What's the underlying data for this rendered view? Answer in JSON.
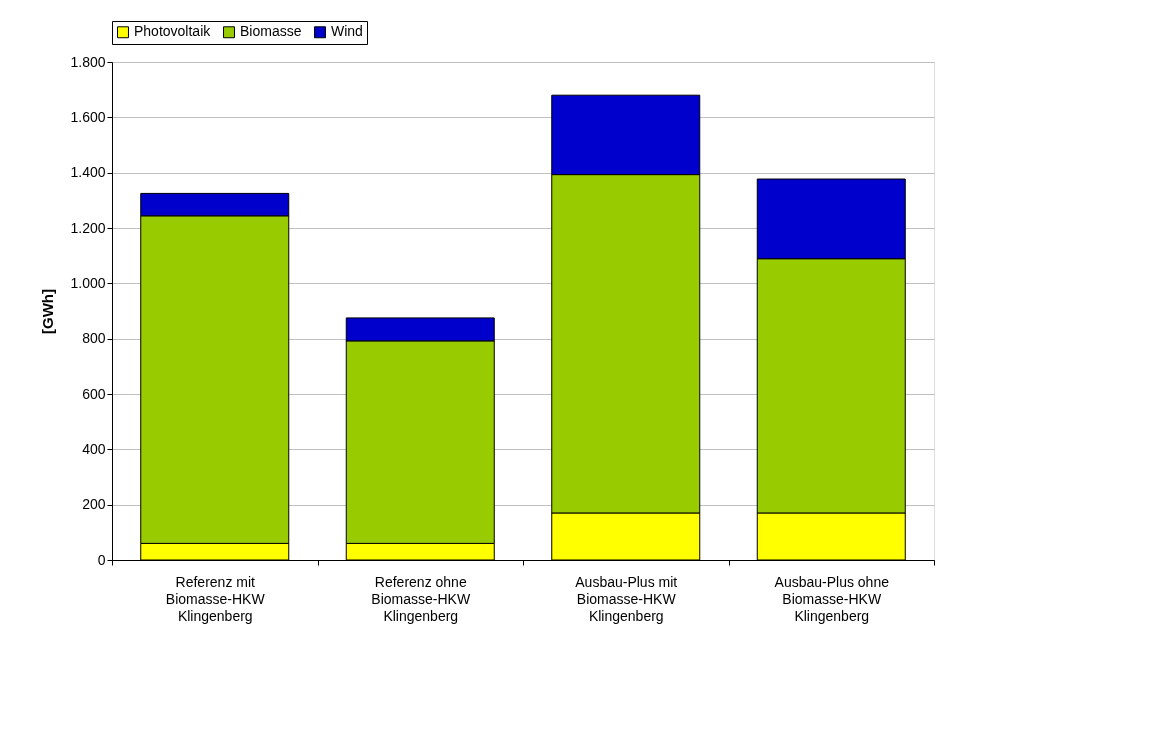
{
  "chart_data": {
    "type": "bar",
    "stacked": true,
    "categories": [
      "Referenz mit\nBiomasse-HKW\nKlingenberg",
      "Referenz ohne\nBiomasse-HKW\nKlingenberg",
      "Ausbau-Plus mit\nBiomasse-HKW\nKlingenberg",
      "Ausbau-Plus ohne\nBiomasse-HKW\nKlingenberg"
    ],
    "series": [
      {
        "name": "Photovoltaik",
        "color": "#ffff00",
        "values": [
          60,
          60,
          170,
          170
        ]
      },
      {
        "name": "Biomasse",
        "color": "#99cc00",
        "values": [
          1184,
          732,
          1223,
          919
        ]
      },
      {
        "name": "Wind",
        "color": "#0000cc",
        "values": [
          81,
          83,
          287,
          288
        ]
      }
    ],
    "ylabel": "[GWh]",
    "ylim": [
      0,
      1800
    ],
    "yticks": [
      0,
      200,
      400,
      600,
      800,
      {
        "value": 1000,
        "label": "1.000"
      },
      {
        "value": 1200,
        "label": "1.200"
      },
      {
        "value": 1400,
        "label": "1.400"
      },
      {
        "value": 1600,
        "label": "1.600"
      },
      {
        "value": 1800,
        "label": "1.800"
      }
    ],
    "grid": "y",
    "legend": "top"
  }
}
